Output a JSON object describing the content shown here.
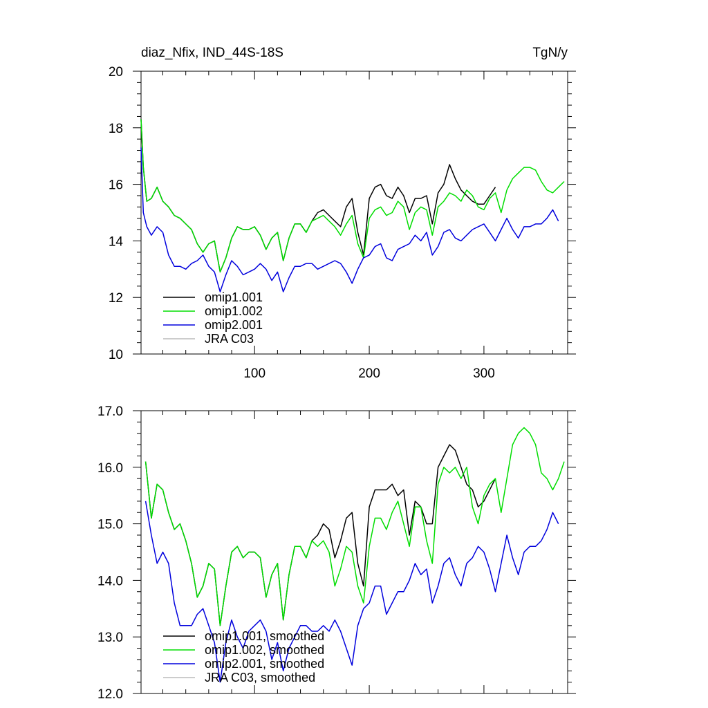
{
  "header": {
    "left_title": "diaz_Nfix, IND_44S-18S",
    "right_title": "TgN/y"
  },
  "colors": {
    "omip1_001": "#000000",
    "omip1_002": "#00dd00",
    "omip2_001": "#0000dd",
    "jra_c03": "#bbbbbb"
  },
  "chart_data": [
    {
      "type": "line",
      "title": "",
      "xlabel": "",
      "ylabel": "",
      "xlim": [
        1,
        373
      ],
      "ylim": [
        10,
        20
      ],
      "x_ticks": [
        100,
        200,
        300
      ],
      "x_tick_labels": [
        "100",
        "200",
        "300"
      ],
      "y_ticks": [
        10,
        12,
        14,
        16,
        18,
        20
      ],
      "y_tick_labels": [
        "10",
        "12",
        "14",
        "16",
        "18",
        "20"
      ],
      "grid": false,
      "legend_position": "bottom-left",
      "series": [
        {
          "name": "omip1.001",
          "color": "#000000",
          "x": [
            1,
            3,
            6,
            10,
            15,
            20,
            25,
            30,
            35,
            40,
            45,
            50,
            55,
            60,
            65,
            70,
            75,
            80,
            85,
            90,
            95,
            100,
            105,
            110,
            115,
            120,
            125,
            130,
            135,
            140,
            145,
            150,
            155,
            160,
            165,
            170,
            175,
            180,
            185,
            190,
            195,
            200,
            205,
            210,
            215,
            220,
            225,
            230,
            235,
            240,
            245,
            250,
            255,
            260,
            265,
            270,
            275,
            280,
            285,
            290,
            295,
            300,
            305,
            310
          ],
          "y": [
            18.3,
            16.6,
            15.4,
            15.5,
            15.9,
            15.4,
            15.2,
            14.9,
            14.8,
            14.6,
            14.4,
            13.9,
            13.6,
            13.9,
            14.0,
            12.9,
            13.4,
            14.1,
            14.5,
            14.4,
            14.4,
            14.5,
            14.2,
            13.7,
            14.1,
            14.3,
            13.3,
            14.1,
            14.6,
            14.6,
            14.3,
            14.7,
            15.0,
            15.1,
            14.9,
            14.7,
            14.5,
            15.2,
            15.5,
            14.3,
            13.5,
            15.5,
            15.9,
            16.0,
            15.6,
            15.5,
            15.9,
            15.6,
            15.0,
            15.5,
            15.5,
            15.6,
            14.6,
            15.7,
            16.0,
            16.7,
            16.2,
            15.8,
            15.6,
            15.4,
            15.3,
            15.3,
            15.6,
            15.9
          ]
        },
        {
          "name": "omip1.002",
          "color": "#00dd00",
          "x": [
            1,
            3,
            6,
            10,
            15,
            20,
            25,
            30,
            35,
            40,
            45,
            50,
            55,
            60,
            65,
            70,
            75,
            80,
            85,
            90,
            95,
            100,
            105,
            110,
            115,
            120,
            125,
            130,
            135,
            140,
            145,
            150,
            155,
            160,
            165,
            170,
            175,
            180,
            185,
            190,
            195,
            200,
            205,
            210,
            215,
            220,
            225,
            230,
            235,
            240,
            245,
            250,
            255,
            260,
            265,
            270,
            275,
            280,
            285,
            290,
            295,
            300,
            305,
            310,
            315,
            320,
            325,
            330,
            335,
            340,
            345,
            350,
            355,
            360,
            365,
            370
          ],
          "y": [
            18.3,
            16.6,
            15.4,
            15.5,
            15.9,
            15.4,
            15.2,
            14.9,
            14.8,
            14.6,
            14.4,
            13.9,
            13.6,
            13.9,
            14.0,
            12.9,
            13.4,
            14.1,
            14.5,
            14.4,
            14.4,
            14.5,
            14.2,
            13.7,
            14.1,
            14.3,
            13.3,
            14.1,
            14.6,
            14.6,
            14.3,
            14.7,
            14.8,
            14.9,
            14.7,
            14.5,
            14.2,
            14.6,
            14.9,
            13.9,
            13.4,
            14.8,
            15.1,
            15.2,
            14.9,
            15.0,
            15.4,
            15.2,
            14.4,
            15.0,
            15.2,
            15.1,
            14.2,
            15.2,
            15.4,
            15.7,
            15.6,
            15.4,
            15.8,
            15.6,
            15.2,
            15.1,
            15.5,
            15.7,
            15.0,
            15.8,
            16.2,
            16.4,
            16.6,
            16.6,
            16.5,
            16.1,
            15.8,
            15.7,
            15.9,
            16.1
          ]
        },
        {
          "name": "omip2.001",
          "color": "#0000dd",
          "x": [
            1,
            3,
            6,
            10,
            15,
            20,
            25,
            30,
            35,
            40,
            45,
            50,
            55,
            60,
            65,
            70,
            75,
            80,
            85,
            90,
            95,
            100,
            105,
            110,
            115,
            120,
            125,
            130,
            135,
            140,
            145,
            150,
            155,
            160,
            165,
            170,
            175,
            180,
            185,
            190,
            195,
            200,
            205,
            210,
            215,
            220,
            225,
            230,
            235,
            240,
            245,
            250,
            255,
            260,
            265,
            270,
            275,
            280,
            285,
            290,
            295,
            300,
            305,
            310,
            315,
            320,
            325,
            330,
            335,
            340,
            345,
            350,
            355,
            360,
            365
          ],
          "y": [
            17.3,
            15.0,
            14.5,
            14.2,
            14.5,
            14.3,
            13.5,
            13.1,
            13.1,
            13.0,
            13.2,
            13.3,
            13.5,
            13.1,
            12.9,
            12.2,
            12.8,
            13.3,
            13.1,
            12.8,
            12.9,
            13.0,
            13.2,
            13.0,
            12.6,
            12.9,
            12.2,
            12.7,
            13.1,
            13.1,
            13.2,
            13.2,
            13.0,
            13.1,
            13.2,
            13.3,
            13.2,
            12.9,
            12.5,
            13.0,
            13.4,
            13.5,
            13.8,
            13.9,
            13.4,
            13.3,
            13.7,
            13.8,
            13.9,
            14.2,
            14.0,
            14.3,
            13.5,
            13.8,
            14.3,
            14.4,
            14.1,
            14.0,
            14.2,
            14.4,
            14.5,
            14.6,
            14.3,
            14.0,
            14.4,
            14.8,
            14.4,
            14.1,
            14.5,
            14.5,
            14.6,
            14.6,
            14.8,
            15.1,
            14.7
          ]
        },
        {
          "name": "JRA C03",
          "color": "#bbbbbb",
          "x": [],
          "y": []
        }
      ]
    },
    {
      "type": "line",
      "title": "",
      "xlabel": "",
      "ylabel": "",
      "xlim": [
        1,
        373
      ],
      "ylim": [
        12,
        17
      ],
      "x_ticks": [
        100,
        200,
        300
      ],
      "x_tick_labels": [],
      "y_ticks": [
        12,
        13,
        14,
        15,
        16,
        17
      ],
      "y_tick_labels": [
        "12.0",
        "13.0",
        "14.0",
        "15.0",
        "16.0",
        "17.0"
      ],
      "grid": false,
      "legend_position": "bottom-left",
      "series": [
        {
          "name": "omip1.001, smoothed",
          "color": "#000000",
          "x": [
            5,
            10,
            15,
            20,
            25,
            30,
            35,
            40,
            45,
            50,
            55,
            60,
            65,
            70,
            75,
            80,
            85,
            90,
            95,
            100,
            105,
            110,
            115,
            120,
            125,
            130,
            135,
            140,
            145,
            150,
            155,
            160,
            165,
            170,
            175,
            180,
            185,
            190,
            195,
            200,
            205,
            210,
            215,
            220,
            225,
            230,
            235,
            240,
            245,
            250,
            255,
            260,
            265,
            270,
            275,
            280,
            285,
            290,
            295,
            300,
            305,
            310
          ],
          "y": [
            16.1,
            15.1,
            15.7,
            15.6,
            15.2,
            14.9,
            15.0,
            14.7,
            14.3,
            13.7,
            13.9,
            14.3,
            14.2,
            13.2,
            13.9,
            14.5,
            14.6,
            14.4,
            14.5,
            14.5,
            14.4,
            13.7,
            14.1,
            14.3,
            13.3,
            14.1,
            14.6,
            14.6,
            14.4,
            14.7,
            14.8,
            15.0,
            14.9,
            14.4,
            14.7,
            15.1,
            15.2,
            14.3,
            13.9,
            15.3,
            15.6,
            15.6,
            15.6,
            15.7,
            15.5,
            15.6,
            14.8,
            15.4,
            15.3,
            15.0,
            15.0,
            16.0,
            16.2,
            16.4,
            16.3,
            16.0,
            15.7,
            15.6,
            15.3,
            15.4,
            15.6,
            15.8
          ]
        },
        {
          "name": "omip1.002, smoothed",
          "color": "#00dd00",
          "x": [
            5,
            10,
            15,
            20,
            25,
            30,
            35,
            40,
            45,
            50,
            55,
            60,
            65,
            70,
            75,
            80,
            85,
            90,
            95,
            100,
            105,
            110,
            115,
            120,
            125,
            130,
            135,
            140,
            145,
            150,
            155,
            160,
            165,
            170,
            175,
            180,
            185,
            190,
            195,
            200,
            205,
            210,
            215,
            220,
            225,
            230,
            235,
            240,
            245,
            250,
            255,
            260,
            265,
            270,
            275,
            280,
            285,
            290,
            295,
            300,
            305,
            310,
            315,
            320,
            325,
            330,
            335,
            340,
            345,
            350,
            355,
            360,
            365,
            370
          ],
          "y": [
            16.1,
            15.1,
            15.7,
            15.6,
            15.2,
            14.9,
            15.0,
            14.7,
            14.3,
            13.7,
            13.9,
            14.3,
            14.2,
            13.2,
            13.9,
            14.5,
            14.6,
            14.4,
            14.5,
            14.5,
            14.4,
            13.7,
            14.1,
            14.3,
            13.3,
            14.1,
            14.6,
            14.6,
            14.4,
            14.7,
            14.6,
            14.7,
            14.5,
            13.9,
            14.2,
            14.6,
            14.5,
            13.9,
            13.6,
            14.6,
            15.1,
            15.1,
            14.9,
            15.2,
            15.4,
            15.0,
            14.6,
            15.3,
            15.3,
            14.7,
            14.3,
            15.7,
            16.0,
            15.9,
            16.0,
            15.8,
            16.0,
            15.3,
            15.0,
            15.5,
            15.7,
            15.8,
            15.2,
            15.8,
            16.4,
            16.6,
            16.7,
            16.6,
            16.4,
            15.9,
            15.8,
            15.6,
            15.8,
            16.1
          ]
        },
        {
          "name": "omip2.001, smoothed",
          "color": "#0000dd",
          "x": [
            5,
            10,
            15,
            20,
            25,
            30,
            35,
            40,
            45,
            50,
            55,
            60,
            65,
            70,
            75,
            80,
            85,
            90,
            95,
            100,
            105,
            110,
            115,
            120,
            125,
            130,
            135,
            140,
            145,
            150,
            155,
            160,
            165,
            170,
            175,
            180,
            185,
            190,
            195,
            200,
            205,
            210,
            215,
            220,
            225,
            230,
            235,
            240,
            245,
            250,
            255,
            260,
            265,
            270,
            275,
            280,
            285,
            290,
            295,
            300,
            305,
            310,
            315,
            320,
            325,
            330,
            335,
            340,
            345,
            350,
            355,
            360,
            365
          ],
          "y": [
            15.4,
            14.8,
            14.3,
            14.5,
            14.3,
            13.6,
            13.2,
            13.2,
            13.2,
            13.4,
            13.5,
            13.2,
            12.9,
            12.2,
            12.9,
            13.3,
            13.0,
            12.8,
            13.1,
            13.2,
            13.3,
            13.1,
            12.6,
            12.9,
            12.4,
            12.8,
            13.0,
            13.2,
            13.2,
            13.1,
            13.1,
            13.2,
            13.1,
            13.3,
            13.1,
            12.8,
            12.5,
            13.2,
            13.5,
            13.6,
            13.9,
            13.9,
            13.4,
            13.6,
            13.8,
            13.8,
            14.0,
            14.3,
            14.1,
            14.2,
            13.6,
            13.9,
            14.3,
            14.4,
            14.1,
            13.9,
            14.3,
            14.4,
            14.6,
            14.5,
            14.2,
            13.8,
            14.3,
            14.8,
            14.4,
            14.1,
            14.5,
            14.6,
            14.6,
            14.7,
            14.9,
            15.2,
            15.0
          ]
        },
        {
          "name": "JRA C03, smoothed",
          "color": "#bbbbbb",
          "x": [],
          "y": []
        }
      ]
    }
  ]
}
